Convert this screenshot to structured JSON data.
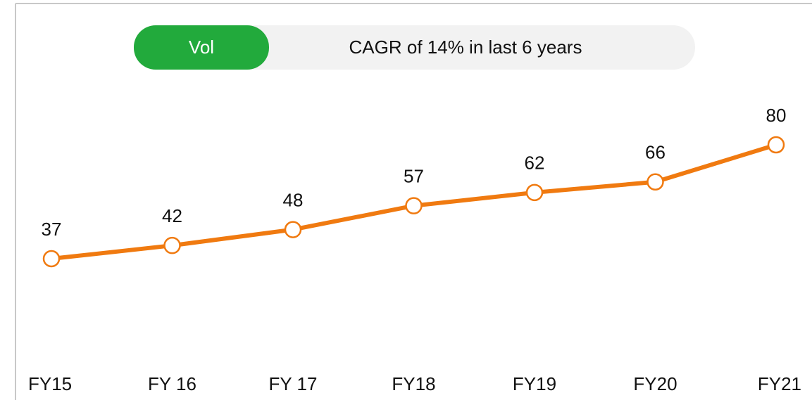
{
  "chart_data": {
    "type": "line",
    "badge": "Vol",
    "title": "CAGR of 14% in last 6 years",
    "categories": [
      "FY15",
      "FY 16",
      "FY 17",
      "FY18",
      "FY19",
      "FY20",
      "FY21"
    ],
    "values": [
      37,
      42,
      48,
      57,
      62,
      66,
      80
    ],
    "color": "#f07a10"
  }
}
